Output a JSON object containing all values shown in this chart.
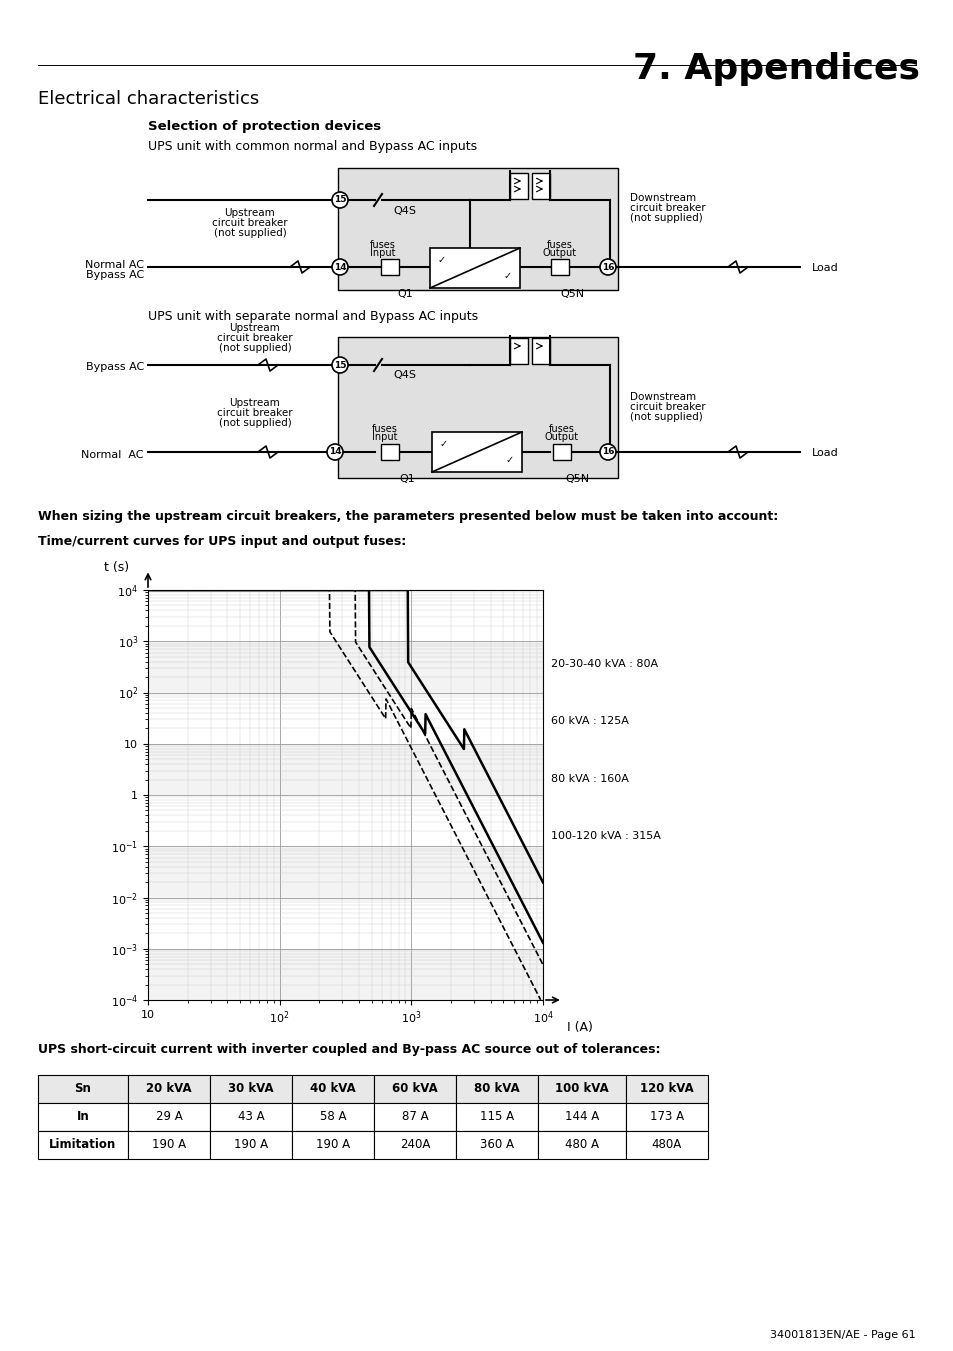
{
  "title": "7. Appendices",
  "section_title": "Electrical characteristics",
  "subsection_title": "Selection of protection devices",
  "diagram1_title": "UPS unit with common normal and Bypass AC inputs",
  "diagram2_title": "UPS unit with separate normal and Bypass AC inputs",
  "graph_subtitle": "Time/current curves for UPS input and output fuses:",
  "sizing_text": "When sizing the upstream circuit breakers, the parameters presented below must be taken into account:",
  "graph_xlabel": "I (A)",
  "graph_ylabel": "t (s)",
  "table_title": "UPS short-circuit current with inverter coupled and By-pass AC source out of tolerances:",
  "table_headers": [
    "Sn",
    "20 kVA",
    "30 kVA",
    "40 kVA",
    "60 kVA",
    "80 kVA",
    "100 kVA",
    "120 kVA"
  ],
  "table_row1": [
    "In",
    "29 A",
    "43 A",
    "58 A",
    "87 A",
    "115 A",
    "144 A",
    "173 A"
  ],
  "table_row2": [
    "Limitation",
    "190 A",
    "190 A",
    "190 A",
    "240A",
    "360 A",
    "480 A",
    "480A"
  ],
  "footer": "34001813EN/AE - Page 61",
  "curve_labels": [
    "20-30-40 kVA : 80A",
    "60 kVA : 125A",
    "80 kVA : 160A",
    "100-120 kVA : 315A"
  ],
  "fuse_ratings": [
    80,
    125,
    160,
    315
  ],
  "bg_color": "#ffffff",
  "diagram_bg": "#d8d8d8"
}
